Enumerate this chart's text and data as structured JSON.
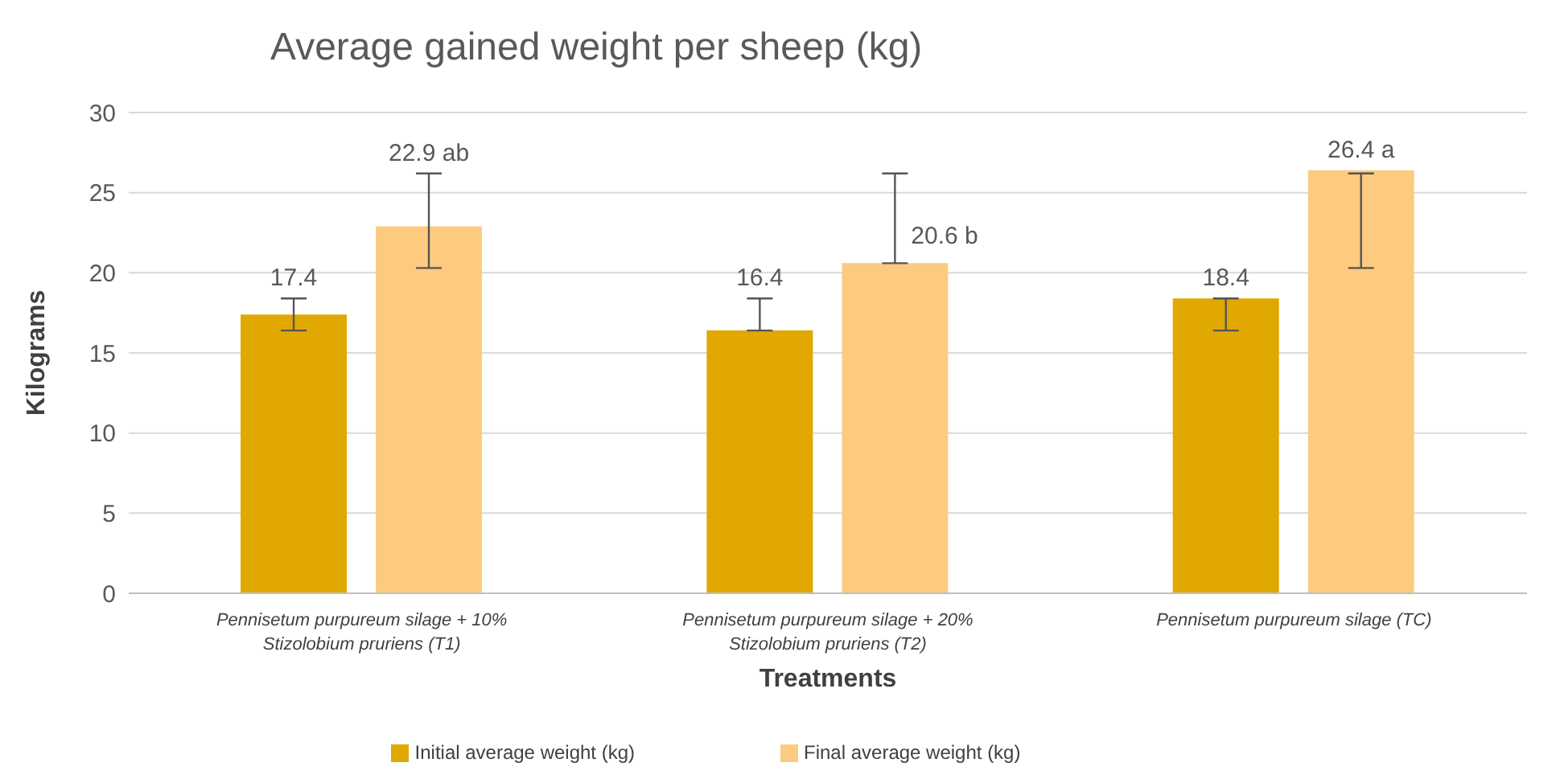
{
  "chart_data": {
    "type": "bar",
    "title": "Average gained weight per sheep (kg)",
    "xlabel": "Treatments",
    "ylabel": "Kilograms",
    "categories": [
      "Pennisetum purpureum silage + 10% Stizolobium pruriens (T1)",
      "Pennisetum purpureum silage + 20% Stizolobium pruriens (T2)",
      "Pennisetum purpureum silage (TC)"
    ],
    "series": [
      {
        "name": "Initial average weight (kg)",
        "color": "#e0a800",
        "values": [
          17.4,
          16.4,
          18.4
        ],
        "errors": [
          [
            16.4,
            18.4
          ],
          [
            16.4,
            18.4
          ],
          [
            16.4,
            18.4
          ]
        ],
        "value_labels": [
          "17.4",
          "16.4",
          "18.4"
        ]
      },
      {
        "name": "Final average weight (kg)",
        "color": "#fdcb7f",
        "values": [
          22.9,
          20.6,
          26.4
        ],
        "errors": [
          [
            20.3,
            26.2
          ],
          [
            20.6,
            26.2
          ],
          [
            20.3,
            26.2
          ]
        ],
        "value_labels": [
          "22.9 ab",
          "20.6 b",
          "26.4 a"
        ]
      }
    ],
    "ylim": [
      0,
      30
    ],
    "yticks": [
      0,
      5,
      10,
      15,
      20,
      25,
      30
    ],
    "grid": "y",
    "legend": "bottom"
  }
}
